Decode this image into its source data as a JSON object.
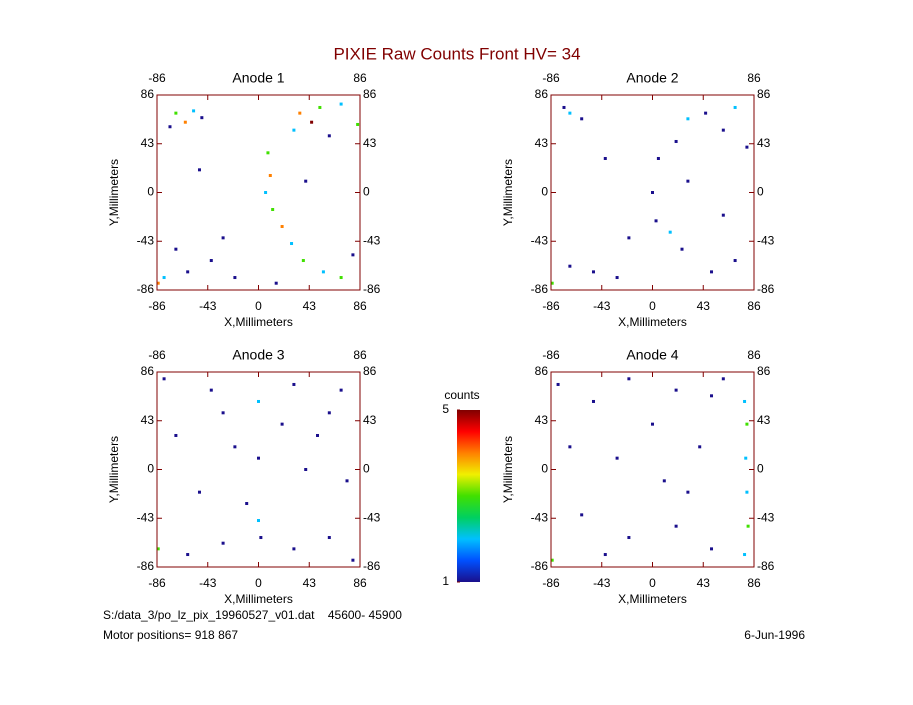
{
  "figure": {
    "title": "PIXIE Raw Counts Front HV= 34",
    "file": "S:/data_3/po_lz_pix_19960527_v01.dat    45600- 45900",
    "motor": "Motor positions= 918 867",
    "date": "6-Jun-1996"
  },
  "colorbar": {
    "title": "counts",
    "lim": [
      1,
      5
    ],
    "ticks": [
      1,
      5
    ],
    "colors": [
      "#1a0f8c",
      "#0050ff",
      "#00c0ff",
      "#00d060",
      "#40e000",
      "#f0f000",
      "#ff8000",
      "#ff0000",
      "#800000"
    ]
  },
  "chart_data": [
    {
      "type": "scatter",
      "title": "Anode 1",
      "xlabel": "X,Millimeters",
      "ylabel": "Y,Millimeters",
      "xlim": [
        -86,
        86
      ],
      "ylim": [
        -86,
        86
      ],
      "xticks": [
        -86,
        -43,
        0,
        43,
        86
      ],
      "yticks": [
        -86,
        -43,
        0,
        43,
        86
      ],
      "x": [
        -70,
        -62,
        -55,
        -75,
        -48,
        35,
        45,
        52,
        30,
        60,
        70,
        8,
        10,
        6,
        12,
        20,
        28,
        38,
        -80,
        -60,
        -40,
        -70,
        55,
        70,
        80,
        -20,
        15,
        -50,
        40,
        -85,
        84,
        -30
      ],
      "y": [
        70,
        62,
        72,
        58,
        66,
        70,
        62,
        75,
        55,
        50,
        78,
        35,
        15,
        0,
        -15,
        -30,
        -45,
        -60,
        -75,
        -70,
        -60,
        -50,
        -70,
        -75,
        -55,
        -75,
        -80,
        20,
        10,
        -80,
        60,
        -40
      ],
      "values": [
        3,
        4,
        2,
        1,
        1,
        4,
        5,
        3,
        2,
        1,
        2,
        3,
        4,
        2,
        3,
        4,
        2,
        3,
        2,
        1,
        1,
        1,
        2,
        3,
        1,
        1,
        1,
        1,
        1,
        4,
        3,
        1
      ]
    },
    {
      "type": "scatter",
      "title": "Anode 2",
      "xlabel": "X,Millimeters",
      "ylabel": "Y,Millimeters",
      "xlim": [
        -86,
        86
      ],
      "ylim": [
        -86,
        86
      ],
      "xticks": [
        -86,
        -43,
        0,
        43,
        86
      ],
      "yticks": [
        -86,
        -43,
        0,
        43,
        86
      ],
      "x": [
        -70,
        -60,
        -75,
        30,
        45,
        60,
        70,
        20,
        5,
        0,
        3,
        15,
        25,
        -50,
        -70,
        50,
        70,
        -85,
        -30,
        30,
        -40,
        60,
        -20,
        80
      ],
      "y": [
        70,
        65,
        75,
        65,
        70,
        55,
        75,
        45,
        30,
        0,
        -25,
        -35,
        -50,
        -70,
        -65,
        -70,
        -60,
        -80,
        -75,
        10,
        30,
        -20,
        -40,
        40
      ],
      "values": [
        2,
        1,
        1,
        2,
        1,
        1,
        2,
        1,
        1,
        1,
        1,
        2,
        1,
        1,
        1,
        1,
        1,
        3,
        1,
        1,
        1,
        1,
        1,
        1
      ]
    },
    {
      "type": "scatter",
      "title": "Anode 3",
      "xlabel": "X,Millimeters",
      "ylabel": "Y,Millimeters",
      "xlim": [
        -86,
        86
      ],
      "ylim": [
        -86,
        86
      ],
      "xticks": [
        -86,
        -43,
        0,
        43,
        86
      ],
      "yticks": [
        -86,
        -43,
        0,
        43,
        86
      ],
      "x": [
        -80,
        -40,
        0,
        30,
        60,
        -70,
        -20,
        0,
        40,
        75,
        -50,
        0,
        2,
        -60,
        -30,
        30,
        60,
        80,
        -85,
        -10,
        20,
        50,
        -30,
        70
      ],
      "y": [
        80,
        70,
        60,
        75,
        50,
        30,
        20,
        10,
        0,
        -10,
        -20,
        -45,
        -60,
        -75,
        -65,
        -70,
        -60,
        -80,
        -70,
        -30,
        40,
        30,
        50,
        70
      ],
      "values": [
        1,
        1,
        2,
        1,
        1,
        1,
        1,
        1,
        1,
        1,
        1,
        2,
        1,
        1,
        1,
        1,
        1,
        1,
        3,
        1,
        1,
        1,
        1,
        1
      ]
    },
    {
      "type": "scatter",
      "title": "Anode 4",
      "xlabel": "X,Millimeters",
      "ylabel": "Y,Millimeters",
      "xlim": [
        -86,
        86
      ],
      "ylim": [
        -86,
        86
      ],
      "xticks": [
        -86,
        -43,
        0,
        43,
        86
      ],
      "yticks": [
        -86,
        -43,
        0,
        43,
        86
      ],
      "x": [
        -80,
        -50,
        -20,
        20,
        50,
        78,
        80,
        79,
        80,
        81,
        78,
        -70,
        -30,
        10,
        40,
        -60,
        -20,
        20,
        50,
        -85,
        -40,
        60,
        0,
        30
      ],
      "y": [
        75,
        60,
        80,
        70,
        65,
        60,
        40,
        10,
        -20,
        -50,
        -75,
        20,
        10,
        -10,
        20,
        -40,
        -60,
        -50,
        -70,
        -80,
        -75,
        80,
        40,
        -20
      ],
      "values": [
        1,
        1,
        1,
        1,
        1,
        2,
        3,
        2,
        2,
        3,
        2,
        1,
        1,
        1,
        1,
        1,
        1,
        1,
        1,
        3,
        1,
        1,
        1,
        1
      ]
    }
  ]
}
